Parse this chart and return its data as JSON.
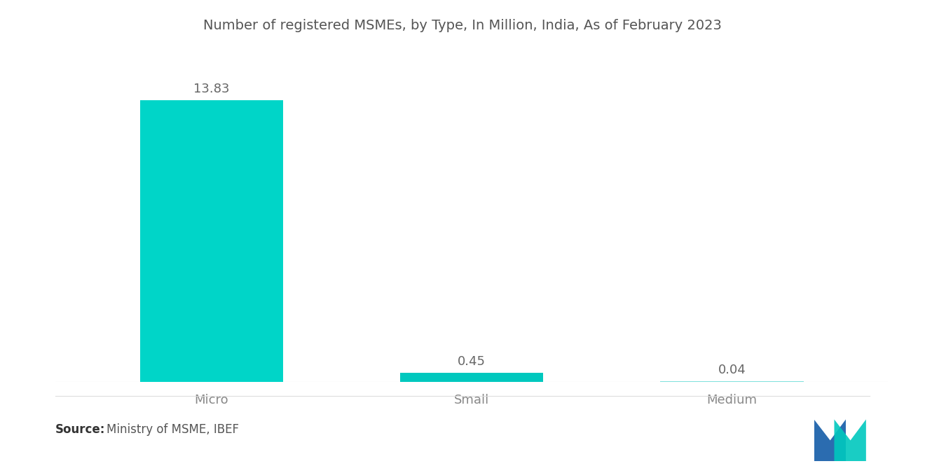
{
  "title": "Number of registered MSMEs, by Type, In Million, India, As of February 2023",
  "categories": [
    "Micro",
    "Small",
    "Medium"
  ],
  "values": [
    13.83,
    0.45,
    0.04
  ],
  "bar_colors": [
    "#00D5C8",
    "#00C8BE",
    "#7FE0DC"
  ],
  "value_labels": [
    "13.83",
    "0.45",
    "0.04"
  ],
  "source_bold": "Source:",
  "source_text": "Ministry of MSME, IBEF",
  "background_color": "#FFFFFF",
  "title_color": "#555555",
  "label_color": "#666666",
  "category_color": "#888888",
  "source_color": "#555555",
  "title_fontsize": 14,
  "value_fontsize": 13,
  "category_fontsize": 13,
  "source_fontsize": 12,
  "ylim": [
    0,
    16
  ],
  "x_positions": [
    1,
    2,
    3
  ],
  "bar_width": 0.55
}
